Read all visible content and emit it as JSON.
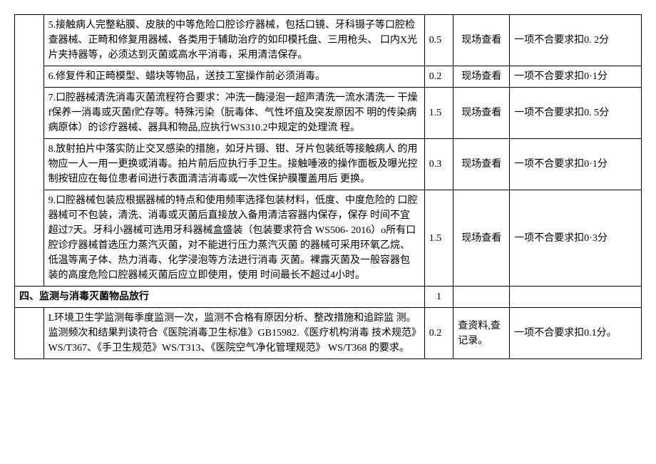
{
  "rows": [
    {
      "desc": "5.接触病人完整粘膜、皮肤的中等危险口腔诊疗器械，包括口镜、牙科镊子等口腔检查器械、正畸和修复用器械、各类用于辅助治疗的如印模托盘、三用枪头、 口内X光片夹持器等，必须达到灭菌或高水平消毒，采用清洁保存。",
      "score": "0.5",
      "method": "现场查看",
      "note": "一项不合要求扣0. 2分"
    },
    {
      "desc": "6.修复件和正畸模型、蜡块等物品，送技工室操作前必须消毒。",
      "score": "0.2",
      "method": "现场查看",
      "note": "一项不合要求扣0·1分"
    },
    {
      "desc": "7.口腔器械清洗消毒灭菌流程符合要求：冲洗一酶浸泡一超声清洗一流水清洗一 干燥f保养一消毒或灭菌f贮存等。特殊污染（朊毒体、气性坏疽及突发原因不 明的传染病病原体）的诊疗器械、器具和物品,应执行WS310.2中规定的处理流 程。",
      "score": "1.5",
      "method": "现场查看",
      "note": "一项不合要求扣0. 5分"
    },
    {
      "desc": "8.放射拍片中落实防止交叉感染的措施，如牙片镊、钳、牙片包装纸等接触病人 的用物应一人一用一更换或消毒。拍片前后应执行手卫生。接触唾液的操作面板及曝光控制按钮应在每位患者间进行表面清洁消毒或一次性保护膜覆盖用后 更换。",
      "score": "0.3",
      "method": "现场查看",
      "note": "一项不合要求扣0·1分"
    },
    {
      "desc": "9.口腔器械包装应根据器械的特点和使用频率选择包装材料，低度、中度危险的 口腔器械可不包装，清洗、消毒或灭菌后直接放入备用清洁容器内保存，保存 时间不宜超过7天。牙科小器械可选用牙科器械盒盛装（包装要求符合 WS506- 2016）o所有口腔诊疗器械首选压力蒸汽灭菌，对不能进行压力蒸汽灭菌 的器械可采用环氧乙烷、低温等离子体、热力消毒、化学浸泡等方法进行消毒 灭菌。裸露灭菌及一般容器包装的高度危险口腔器械灭菌后应立即使用，使用 时间最长不超过4小时。",
      "score": "1.5",
      "method": "现场查看",
      "note": "一项不合要求扣0·3分"
    }
  ],
  "section": {
    "title": "四、监测与消毒灭菌物品放行",
    "score": "1"
  },
  "rows2": [
    {
      "desc": "L环境卫生学监测每季度监测一次，监测不合格有原因分析、整改措施和追踪监 测。监测频次和结果判读符合《医院消毒卫生标准》GB15982.《医疗机构消毒 技术规范》WS/T367、《手卫生规范》WS/T313、《医院空气净化管理规范》 WS/T368 的要求。",
      "score": "0.2",
      "method": "查资料,查记录。",
      "note": "一项不合要求扣0.1分。"
    }
  ]
}
